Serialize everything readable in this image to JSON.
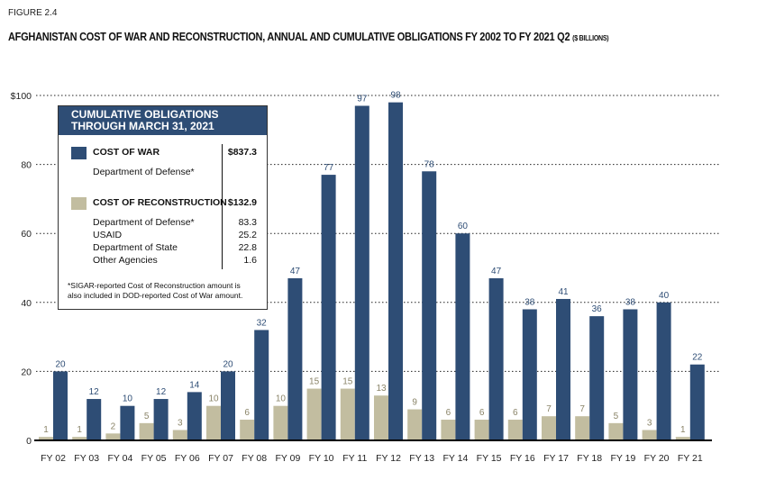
{
  "figure_label": "FIGURE 2.4",
  "title": "AFGHANISTAN COST OF WAR AND RECONSTRUCTION, ANNUAL AND CUMULATIVE OBLIGATIONS FY 2002 TO FY 2021 Q2",
  "title_unit": "($ BILLIONS)",
  "colors": {
    "war": "#2e4d75",
    "reconstruction": "#c2bda0"
  },
  "legend_box": {
    "header_line1": "CUMULATIVE OBLIGATIONS",
    "header_line2": "THROUGH MARCH 31, 2021",
    "war_label": "COST OF WAR",
    "war_total": "$837.3",
    "war_sub": "Department of Defense*",
    "recon_label": "COST OF RECONSTRUCTION",
    "recon_total": "$132.9",
    "recon_items": [
      {
        "label": "Department of Defense*",
        "value": "83.3"
      },
      {
        "label": "USAID",
        "value": "25.2"
      },
      {
        "label": "Department of State",
        "value": "22.8"
      },
      {
        "label": "Other Agencies",
        "value": "1.6"
      }
    ],
    "note_line1": "*SIGAR-reported Cost of Reconstruction amount is",
    "note_line2": "also included in DOD-reported Cost of War amount."
  },
  "chart_data": {
    "type": "bar",
    "categories": [
      "FY 02",
      "FY 03",
      "FY 04",
      "FY 05",
      "FY 06",
      "FY 07",
      "FY 08",
      "FY 09",
      "FY 10",
      "FY 11",
      "FY 12",
      "FY 13",
      "FY 14",
      "FY 15",
      "FY 16",
      "FY 17",
      "FY 18",
      "FY 19",
      "FY 20",
      "FY 21"
    ],
    "series": [
      {
        "name": "COST OF RECONSTRUCTION",
        "values": [
          1,
          1,
          2,
          5,
          3,
          10,
          6,
          10,
          15,
          15,
          13,
          9,
          6,
          6,
          6,
          7,
          7,
          5,
          3,
          1
        ]
      },
      {
        "name": "COST OF WAR",
        "values": [
          20,
          12,
          10,
          12,
          14,
          20,
          32,
          47,
          77,
          97,
          98,
          78,
          60,
          47,
          38,
          41,
          36,
          38,
          40,
          22
        ]
      }
    ],
    "yticks": [
      "0",
      "20",
      "40",
      "60",
      "80",
      "$100"
    ],
    "ylim": [
      0,
      100
    ],
    "grid": true
  }
}
